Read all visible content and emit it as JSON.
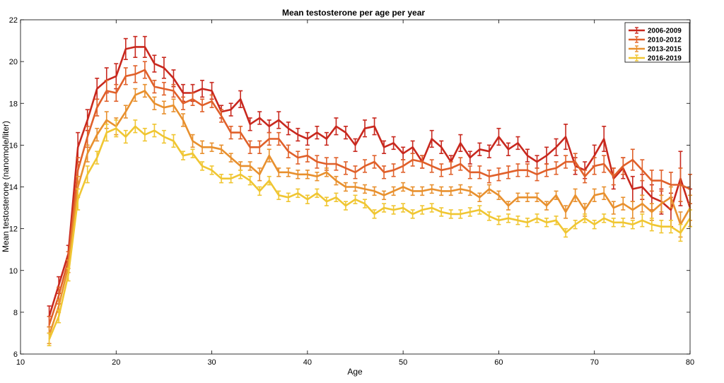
{
  "chart_data": {
    "type": "line",
    "title": "Mean testosterone per age per year",
    "xlabel": "Age",
    "ylabel": "Mean testosterone (nanomole/liter)",
    "xlim": [
      10,
      80
    ],
    "ylim": [
      6,
      22
    ],
    "xticks": [
      10,
      20,
      30,
      40,
      50,
      60,
      70,
      80
    ],
    "yticks": [
      6,
      8,
      10,
      12,
      14,
      16,
      18,
      20,
      22
    ],
    "legend_position": "top-right",
    "x": [
      13,
      14,
      15,
      16,
      17,
      18,
      19,
      20,
      21,
      22,
      23,
      24,
      25,
      26,
      27,
      28,
      29,
      30,
      31,
      32,
      33,
      34,
      35,
      36,
      37,
      38,
      39,
      40,
      41,
      42,
      43,
      44,
      45,
      46,
      47,
      48,
      49,
      50,
      51,
      52,
      53,
      54,
      55,
      56,
      57,
      58,
      59,
      60,
      61,
      62,
      63,
      64,
      65,
      66,
      67,
      68,
      69,
      70,
      71,
      72,
      73,
      74,
      75,
      76,
      77,
      78,
      79,
      80
    ],
    "series": [
      {
        "name": "2006-2009",
        "color": "#c8281e",
        "values": [
          7.8,
          9.3,
          10.8,
          15.9,
          17.2,
          18.7,
          19.1,
          19.3,
          20.6,
          20.7,
          20.7,
          19.9,
          19.7,
          19.2,
          18.5,
          18.5,
          18.7,
          18.6,
          17.6,
          17.7,
          18.2,
          17.0,
          17.3,
          16.9,
          17.2,
          16.8,
          16.5,
          16.3,
          16.6,
          16.3,
          16.9,
          16.6,
          16.0,
          16.8,
          16.9,
          15.9,
          16.1,
          15.6,
          15.9,
          15.2,
          16.3,
          15.9,
          15.2,
          16.1,
          15.4,
          15.8,
          15.7,
          16.4,
          15.8,
          16.1,
          15.5,
          15.2,
          15.5,
          15.9,
          16.4,
          15.0,
          14.8,
          15.5,
          16.3,
          14.4,
          14.9,
          13.9,
          14.0,
          13.5,
          13.3,
          12.9,
          14.4,
          13.0
        ],
        "errors": [
          0.5,
          0.4,
          0.4,
          0.7,
          0.5,
          0.5,
          0.6,
          0.6,
          0.5,
          0.5,
          0.5,
          0.4,
          0.5,
          0.4,
          0.4,
          0.4,
          0.4,
          0.4,
          0.3,
          0.3,
          0.4,
          0.3,
          0.3,
          0.3,
          0.4,
          0.3,
          0.3,
          0.3,
          0.3,
          0.3,
          0.4,
          0.3,
          0.3,
          0.4,
          0.4,
          0.3,
          0.3,
          0.3,
          0.3,
          0.3,
          0.4,
          0.3,
          0.3,
          0.4,
          0.3,
          0.3,
          0.3,
          0.4,
          0.3,
          0.3,
          0.3,
          0.3,
          0.4,
          0.4,
          0.6,
          0.4,
          0.4,
          0.5,
          0.6,
          0.5,
          0.5,
          0.6,
          0.6,
          0.6,
          0.6,
          0.8,
          1.3,
          0.9
        ]
      },
      {
        "name": "2010-2012",
        "color": "#e0602a",
        "values": [
          7.4,
          8.8,
          10.5,
          14.8,
          16.4,
          17.8,
          18.6,
          18.5,
          19.3,
          19.4,
          19.6,
          18.8,
          18.7,
          18.6,
          18.0,
          18.2,
          17.9,
          18.1,
          17.4,
          16.6,
          16.6,
          15.9,
          15.9,
          16.3,
          16.3,
          15.7,
          15.4,
          15.5,
          15.2,
          15.1,
          15.1,
          14.9,
          14.7,
          15.0,
          15.2,
          14.7,
          14.8,
          15.0,
          15.3,
          15.2,
          15.0,
          14.8,
          14.9,
          15.1,
          14.7,
          14.7,
          14.5,
          14.6,
          14.7,
          14.8,
          14.8,
          14.6,
          14.8,
          14.9,
          15.2,
          15.2,
          14.5,
          15.0,
          15.1,
          14.5,
          15.0,
          15.3,
          14.8,
          14.3,
          14.3,
          14.1,
          14.1,
          13.9
        ],
        "errors": [
          0.4,
          0.4,
          0.4,
          0.6,
          0.5,
          0.4,
          0.5,
          0.4,
          0.4,
          0.4,
          0.4,
          0.3,
          0.3,
          0.3,
          0.3,
          0.3,
          0.3,
          0.3,
          0.3,
          0.3,
          0.3,
          0.3,
          0.3,
          0.3,
          0.3,
          0.3,
          0.3,
          0.3,
          0.3,
          0.3,
          0.3,
          0.3,
          0.3,
          0.3,
          0.3,
          0.3,
          0.3,
          0.3,
          0.3,
          0.3,
          0.3,
          0.3,
          0.3,
          0.3,
          0.3,
          0.3,
          0.3,
          0.3,
          0.3,
          0.3,
          0.3,
          0.3,
          0.3,
          0.3,
          0.3,
          0.4,
          0.3,
          0.4,
          0.4,
          0.4,
          0.4,
          0.5,
          0.5,
          0.5,
          0.5,
          0.6,
          0.8,
          0.7
        ]
      },
      {
        "name": "2013-2015",
        "color": "#e8902e",
        "values": [
          6.9,
          8.3,
          10.2,
          14.0,
          15.6,
          16.5,
          17.2,
          16.9,
          17.6,
          18.4,
          18.6,
          18.0,
          17.8,
          17.9,
          17.2,
          16.2,
          15.9,
          15.9,
          15.8,
          15.4,
          15.0,
          15.0,
          14.6,
          15.5,
          14.7,
          14.7,
          14.6,
          14.6,
          14.5,
          14.7,
          14.3,
          14.0,
          14.0,
          13.9,
          13.8,
          13.6,
          13.8,
          14.0,
          13.8,
          13.8,
          13.9,
          13.8,
          13.8,
          13.9,
          13.8,
          13.5,
          13.9,
          13.6,
          13.1,
          13.5,
          13.5,
          13.5,
          13.1,
          13.6,
          12.8,
          13.6,
          12.9,
          13.6,
          13.7,
          13.0,
          13.2,
          12.9,
          13.2,
          12.8,
          13.2,
          13.5,
          12.2,
          13.0
        ],
        "errors": [
          0.4,
          0.3,
          0.3,
          0.5,
          0.4,
          0.3,
          0.4,
          0.4,
          0.3,
          0.3,
          0.3,
          0.3,
          0.3,
          0.3,
          0.3,
          0.3,
          0.3,
          0.2,
          0.2,
          0.2,
          0.2,
          0.2,
          0.3,
          0.3,
          0.2,
          0.2,
          0.2,
          0.2,
          0.2,
          0.2,
          0.2,
          0.2,
          0.2,
          0.2,
          0.2,
          0.2,
          0.2,
          0.2,
          0.2,
          0.2,
          0.2,
          0.2,
          0.2,
          0.2,
          0.2,
          0.2,
          0.2,
          0.2,
          0.2,
          0.2,
          0.2,
          0.2,
          0.2,
          0.2,
          0.3,
          0.3,
          0.3,
          0.3,
          0.3,
          0.3,
          0.3,
          0.4,
          0.4,
          0.4,
          0.4,
          0.5,
          0.6,
          0.6
        ]
      },
      {
        "name": "2016-2019",
        "color": "#f0c632",
        "values": [
          6.7,
          7.8,
          9.8,
          13.4,
          14.6,
          15.4,
          16.6,
          16.8,
          16.4,
          16.9,
          16.5,
          16.7,
          16.4,
          16.2,
          15.5,
          15.6,
          15.0,
          14.8,
          14.4,
          14.4,
          14.6,
          14.3,
          13.8,
          14.3,
          13.6,
          13.5,
          13.7,
          13.4,
          13.7,
          13.3,
          13.5,
          13.1,
          13.4,
          13.2,
          12.7,
          13.0,
          12.9,
          13.0,
          12.7,
          12.9,
          13.0,
          12.8,
          12.7,
          12.7,
          12.8,
          12.9,
          12.6,
          12.4,
          12.5,
          12.4,
          12.3,
          12.5,
          12.3,
          12.4,
          11.8,
          12.2,
          12.5,
          12.2,
          12.5,
          12.3,
          12.3,
          12.2,
          12.4,
          12.2,
          12.1,
          12.1,
          11.8,
          12.5
        ],
        "errors": [
          0.3,
          0.3,
          0.3,
          0.5,
          0.4,
          0.3,
          0.4,
          0.4,
          0.3,
          0.3,
          0.3,
          0.3,
          0.3,
          0.3,
          0.2,
          0.2,
          0.2,
          0.2,
          0.2,
          0.2,
          0.2,
          0.2,
          0.2,
          0.2,
          0.2,
          0.2,
          0.2,
          0.2,
          0.2,
          0.2,
          0.2,
          0.2,
          0.2,
          0.2,
          0.2,
          0.2,
          0.2,
          0.2,
          0.2,
          0.2,
          0.2,
          0.2,
          0.2,
          0.2,
          0.2,
          0.2,
          0.2,
          0.2,
          0.2,
          0.2,
          0.2,
          0.2,
          0.2,
          0.2,
          0.2,
          0.2,
          0.2,
          0.2,
          0.2,
          0.2,
          0.2,
          0.2,
          0.3,
          0.3,
          0.3,
          0.3,
          0.4,
          0.4
        ]
      }
    ]
  }
}
